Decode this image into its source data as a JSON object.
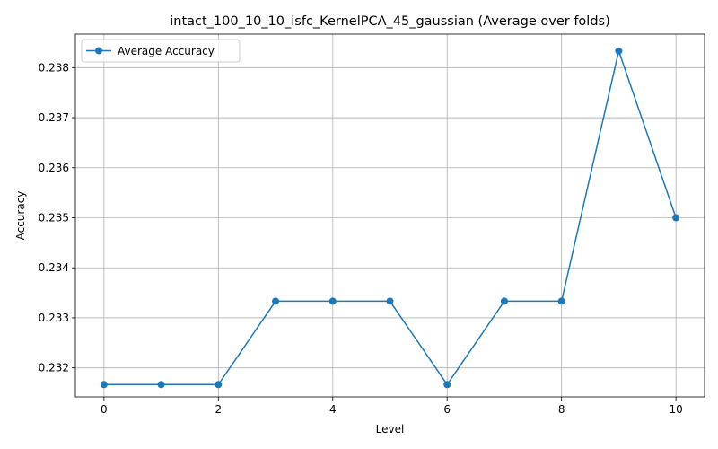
{
  "chart_data": {
    "type": "line",
    "title": "intact_100_10_10_isfc_KernelPCA_45_gaussian (Average over folds)",
    "xlabel": "Level",
    "ylabel": "Accuracy",
    "x": [
      0,
      1,
      2,
      3,
      4,
      5,
      6,
      7,
      8,
      9,
      10
    ],
    "series": [
      {
        "name": "Average Accuracy",
        "color": "#1f77b4",
        "marker": "circle",
        "values": [
          0.231667,
          0.231667,
          0.231667,
          0.233333,
          0.233333,
          0.233333,
          0.231667,
          0.233333,
          0.233333,
          0.238333,
          0.235
        ]
      }
    ],
    "xlim": [
      -0.5,
      10.5
    ],
    "ylim": [
      0.23142,
      0.23867
    ],
    "xticks": [
      0,
      2,
      4,
      6,
      8,
      10
    ],
    "yticks": [
      0.232,
      0.233,
      0.234,
      0.235,
      0.236,
      0.237,
      0.238
    ],
    "xtick_labels": [
      "0",
      "2",
      "4",
      "6",
      "8",
      "10"
    ],
    "ytick_labels": [
      "0.232",
      "0.233",
      "0.234",
      "0.235",
      "0.236",
      "0.237",
      "0.238"
    ],
    "grid": true,
    "legend_position": "top-left"
  }
}
